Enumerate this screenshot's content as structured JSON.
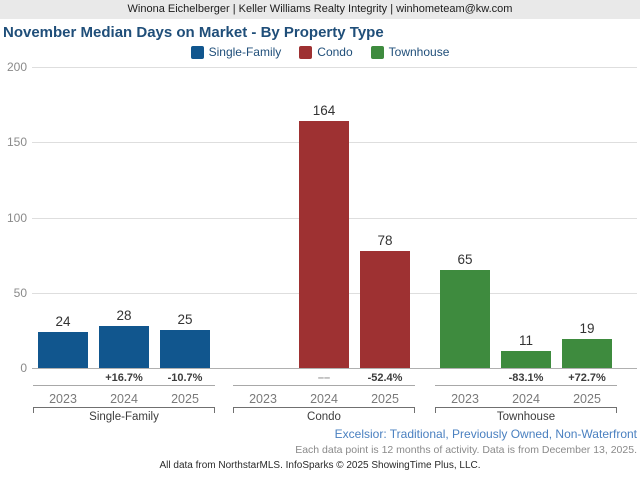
{
  "header": {
    "text": "Winona Eichelberger | Keller Williams Realty Integrity | winhometeam@kw.com"
  },
  "title": "November Median Days on Market - By Property Type",
  "colors": {
    "single_family": "#11568e",
    "condo": "#9e3132",
    "townhouse": "#3e8b3e",
    "title_text": "#1f4e79",
    "filter_text": "#4a80c0"
  },
  "chart_data": {
    "type": "bar",
    "title": "November Median Days on Market - By Property Type",
    "ylim": [
      0,
      200
    ],
    "yticks": [
      0,
      50,
      100,
      150,
      200
    ],
    "grid": true,
    "legend_position": "top-center",
    "categories": [
      "2023",
      "2024",
      "2025"
    ],
    "groups": [
      {
        "name": "Single-Family",
        "color": "#11568e",
        "values": [
          24,
          28,
          25
        ],
        "changes": [
          "",
          "+16.7%",
          "-10.7%"
        ]
      },
      {
        "name": "Condo",
        "color": "#9e3132",
        "values": [
          null,
          164,
          78
        ],
        "changes": [
          "",
          "––",
          "-52.4%"
        ]
      },
      {
        "name": "Townhouse",
        "color": "#3e8b3e",
        "values": [
          65,
          11,
          19
        ],
        "changes": [
          "",
          "-83.1%",
          "+72.7%"
        ]
      }
    ]
  },
  "footer": {
    "filters": "Excelsior: Traditional, Previously Owned, Non-Waterfront",
    "note": "Each data point is 12 months of activity. Data is from December 13, 2025.",
    "credit": "All data from NorthstarMLS. InfoSparks © 2025 ShowingTime Plus, LLC."
  }
}
